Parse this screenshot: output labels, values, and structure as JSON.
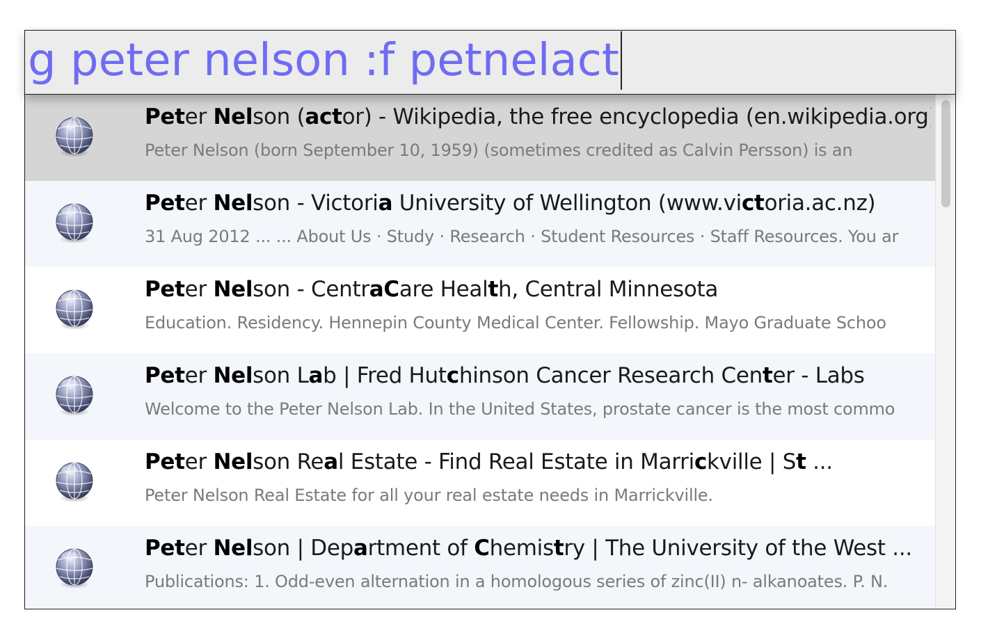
{
  "search": {
    "query": "g peter nelson :f petnelact"
  },
  "colors": {
    "query_text": "#6f6cf3",
    "selected_row": "#d5d5d5",
    "alt_row": "#f3f6fb"
  },
  "results": [
    {
      "icon": "globe-icon",
      "title": [
        {
          "t": "Pet",
          "b": true
        },
        {
          "t": "er ",
          "b": false
        },
        {
          "t": "Nel",
          "b": true
        },
        {
          "t": "son (",
          "b": false
        },
        {
          "t": "act",
          "b": true
        },
        {
          "t": "or) - Wikipedia, the free encyclopedia (en.wikipedia.org)",
          "b": false
        }
      ],
      "snippet": "Peter Nelson (born September 10, 1959) (sometimes credited as Calvin Persson) is an",
      "selected": true
    },
    {
      "icon": "globe-icon",
      "title": [
        {
          "t": "Pet",
          "b": true
        },
        {
          "t": "er ",
          "b": false
        },
        {
          "t": "Nel",
          "b": true
        },
        {
          "t": "son - Victori",
          "b": false
        },
        {
          "t": "a",
          "b": true
        },
        {
          "t": " University of Wellington (www.vi",
          "b": false
        },
        {
          "t": "ct",
          "b": true
        },
        {
          "t": "oria.ac.nz)",
          "b": false
        }
      ],
      "snippet": "31 Aug 2012 ... ... About Us · Study · Research · Student Resources · Staff Resources. You ar",
      "selected": false
    },
    {
      "icon": "globe-icon",
      "title": [
        {
          "t": "Pet",
          "b": true
        },
        {
          "t": "er ",
          "b": false
        },
        {
          "t": "Nel",
          "b": true
        },
        {
          "t": "son - Centr",
          "b": false
        },
        {
          "t": "aC",
          "b": true
        },
        {
          "t": "are Heal",
          "b": false
        },
        {
          "t": "t",
          "b": true
        },
        {
          "t": "h, Central Minnesota",
          "b": false
        }
      ],
      "snippet": "Education. Residency. Hennepin County Medical Center. Fellowship. Mayo Graduate Schoo",
      "selected": false
    },
    {
      "icon": "globe-icon",
      "title": [
        {
          "t": "Pet",
          "b": true
        },
        {
          "t": "er ",
          "b": false
        },
        {
          "t": "Nel",
          "b": true
        },
        {
          "t": "son L",
          "b": false
        },
        {
          "t": "a",
          "b": true
        },
        {
          "t": "b | Fred Hut",
          "b": false
        },
        {
          "t": "c",
          "b": true
        },
        {
          "t": "hinson Cancer Research Cen",
          "b": false
        },
        {
          "t": "t",
          "b": true
        },
        {
          "t": "er - Labs",
          "b": false
        }
      ],
      "snippet": "Welcome to the Peter Nelson Lab. In the United States, prostate cancer is the most commo",
      "selected": false
    },
    {
      "icon": "globe-icon",
      "title": [
        {
          "t": "Pet",
          "b": true
        },
        {
          "t": "er ",
          "b": false
        },
        {
          "t": "Nel",
          "b": true
        },
        {
          "t": "son Re",
          "b": false
        },
        {
          "t": "a",
          "b": true
        },
        {
          "t": "l Estate - Find Real Estate in Marri",
          "b": false
        },
        {
          "t": "c",
          "b": true
        },
        {
          "t": "kville | S",
          "b": false
        },
        {
          "t": "t",
          "b": true
        },
        {
          "t": " ...",
          "b": false
        }
      ],
      "snippet": "Peter Nelson Real Estate for all your real estate needs in Marrickville.",
      "selected": false
    },
    {
      "icon": "globe-icon",
      "title": [
        {
          "t": "Pet",
          "b": true
        },
        {
          "t": "er ",
          "b": false
        },
        {
          "t": "Nel",
          "b": true
        },
        {
          "t": "son | Dep",
          "b": false
        },
        {
          "t": "a",
          "b": true
        },
        {
          "t": "rtment of ",
          "b": false
        },
        {
          "t": "C",
          "b": true
        },
        {
          "t": "hemis",
          "b": false
        },
        {
          "t": "t",
          "b": true
        },
        {
          "t": "ry | The University of the West ...",
          "b": false
        }
      ],
      "snippet": "Publications: 1. Odd-even alternation in a homologous series of zinc(II) n- alkanoates. P. N.",
      "selected": false
    }
  ]
}
